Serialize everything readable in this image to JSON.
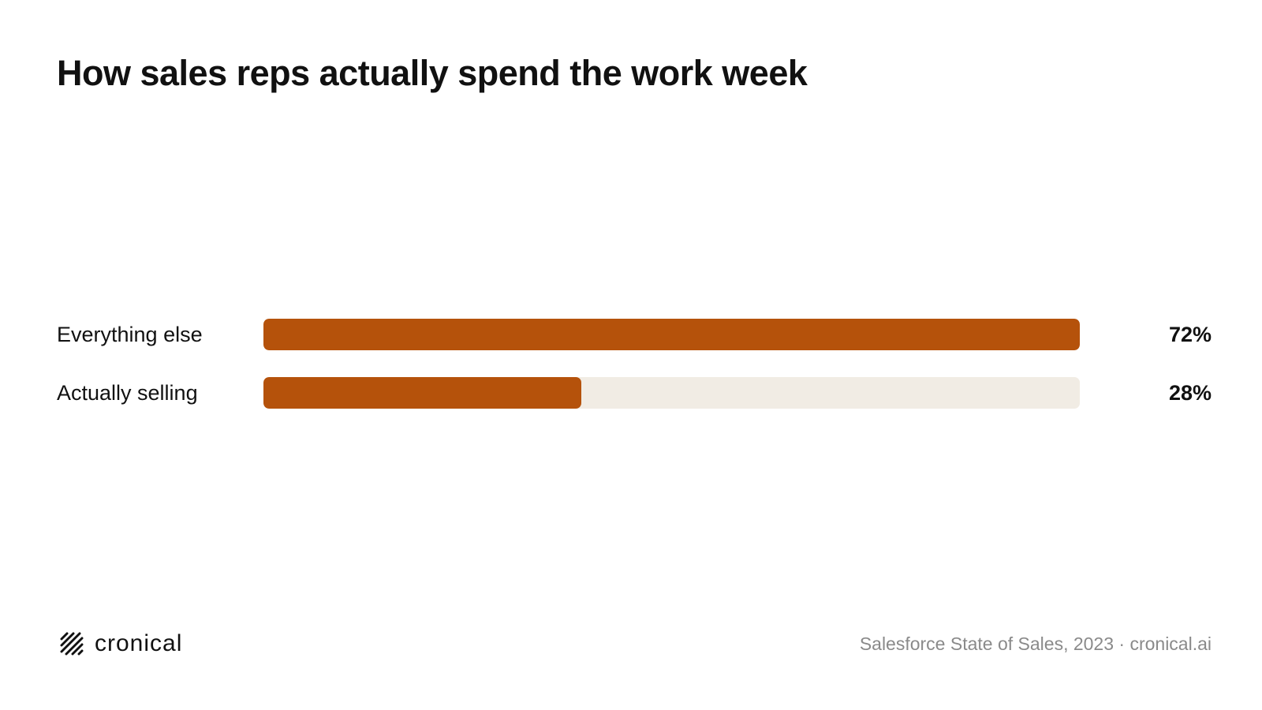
{
  "title": "How sales reps actually spend the work week",
  "chart_data": {
    "type": "bar",
    "orientation": "horizontal",
    "categories": [
      "Everything else",
      "Actually selling"
    ],
    "values": [
      72,
      28
    ],
    "value_labels": [
      "72%",
      "28%"
    ],
    "unit": "%",
    "xlim": [
      0,
      72
    ],
    "grid": false,
    "legend": "none",
    "colors": {
      "bar": "#b5520b",
      "track": "#f1ece4"
    }
  },
  "footer": {
    "brand": "cronical",
    "brand_icon": "hatched-logo-icon",
    "source": "Salesforce State of Sales, 2023 · cronical.ai"
  }
}
